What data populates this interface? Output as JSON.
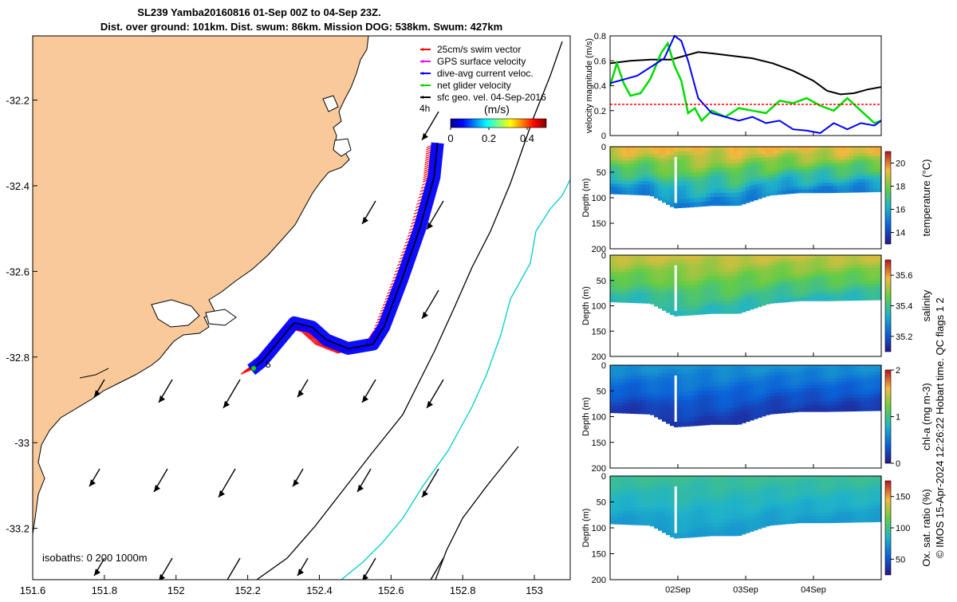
{
  "title": {
    "line1": "SL239 Yamba20160816 01-Sep 00Z to 04-Sep 23Z.",
    "line2": "Dist. over ground: 101km. Dist. swum: 86km. Mission DOG: 538km. Swum: 427km"
  },
  "side_note": "© IMOS 15-Apr-2024 12:26:22 Hobart time. QC flags 1  2",
  "colors": {
    "land": "#f9c99a",
    "swim_vector": "#ff0000",
    "gps_velocity": "#ff00ff",
    "dive_avg_current": "#0000ff",
    "net_glider_velocity": "#00dd00",
    "sfc_geo_velocity": "#000000",
    "isobath_200": "#000000",
    "isobath_1000": "#00cccc"
  },
  "chart_data": [
    {
      "id": "map",
      "type": "map",
      "xlim": [
        151.6,
        153.1
      ],
      "ylim": [
        -33.32,
        -32.05
      ],
      "xticks": [
        "151.6",
        "151.8",
        "152",
        "152.2",
        "152.4",
        "152.6",
        "152.8",
        "153"
      ],
      "yticks": [
        "-32.2",
        "-32.4",
        "-32.6",
        "-32.8",
        "-33",
        "-33.2"
      ],
      "legend": {
        "placement": "top-right",
        "items": [
          {
            "label": "25cm/s swim vector",
            "color": "#ff0000"
          },
          {
            "label": "GPS surface velocity",
            "color": "#ff00ff"
          },
          {
            "label": "dive-avg current veloc.",
            "color": "#0000ff"
          },
          {
            "label": "net glider velocity",
            "color": "#00dd00"
          },
          {
            "label": "sfc geo. vel. 04-Sep-2016",
            "color": "#000000"
          }
        ]
      },
      "colorbar": {
        "label": "(m/s)",
        "ticks": [
          "0",
          "0.2",
          "0.4"
        ],
        "range": [
          0,
          0.5
        ]
      },
      "labels": {
        "interval": "4h",
        "marker": "5",
        "isobaths": "isobaths: 0   200  1000m"
      },
      "glider_track": [
        [
          152.73,
          -32.3
        ],
        [
          152.72,
          -32.38
        ],
        [
          152.68,
          -32.5
        ],
        [
          152.63,
          -32.62
        ],
        [
          152.58,
          -32.73
        ],
        [
          152.55,
          -32.77
        ],
        [
          152.48,
          -32.78
        ],
        [
          152.42,
          -32.76
        ],
        [
          152.38,
          -32.73
        ],
        [
          152.33,
          -32.72
        ],
        [
          152.29,
          -32.76
        ],
        [
          152.24,
          -32.81
        ],
        [
          152.21,
          -32.83
        ]
      ]
    },
    {
      "id": "velocity",
      "type": "line",
      "ylabel": "velocity magnitude (m/s)",
      "xlim": [
        0,
        4
      ],
      "ylim": [
        0,
        0.8
      ],
      "yticks": [
        "0",
        "0.2",
        "0.4",
        "0.6",
        "0.8"
      ],
      "series": [
        {
          "color": "#000000",
          "x": [
            0,
            0.3,
            0.6,
            0.9,
            1.1,
            1.3,
            1.5,
            1.8,
            2.1,
            2.4,
            2.7,
            3.0,
            3.2,
            3.4,
            3.6,
            3.8,
            4.0
          ],
          "values": [
            0.58,
            0.6,
            0.61,
            0.61,
            0.64,
            0.67,
            0.66,
            0.64,
            0.62,
            0.58,
            0.52,
            0.44,
            0.36,
            0.33,
            0.34,
            0.37,
            0.39
          ]
        },
        {
          "color": "#00dd00",
          "x": [
            0,
            0.1,
            0.2,
            0.3,
            0.45,
            0.6,
            0.75,
            0.85,
            0.95,
            1.05,
            1.15,
            1.25,
            1.35,
            1.5,
            1.7,
            1.9,
            2.1,
            2.3,
            2.5,
            2.7,
            2.9,
            3.1,
            3.3,
            3.5,
            3.7,
            3.9,
            4.0
          ],
          "values": [
            0.4,
            0.58,
            0.42,
            0.32,
            0.34,
            0.46,
            0.66,
            0.74,
            0.56,
            0.44,
            0.18,
            0.22,
            0.12,
            0.2,
            0.15,
            0.22,
            0.2,
            0.18,
            0.28,
            0.26,
            0.3,
            0.24,
            0.2,
            0.3,
            0.2,
            0.1,
            0.12
          ]
        },
        {
          "color": "#0000ff",
          "x": [
            0,
            0.2,
            0.4,
            0.6,
            0.8,
            0.95,
            1.05,
            1.15,
            1.3,
            1.5,
            1.7,
            1.9,
            2.1,
            2.3,
            2.5,
            2.7,
            2.9,
            3.1,
            3.3,
            3.5,
            3.7,
            3.9,
            4.0
          ],
          "values": [
            0.42,
            0.45,
            0.48,
            0.55,
            0.62,
            0.8,
            0.76,
            0.6,
            0.3,
            0.18,
            0.15,
            0.12,
            0.15,
            0.1,
            0.12,
            0.05,
            0.04,
            0.02,
            0.1,
            0.05,
            0.1,
            0.08,
            0.12
          ]
        },
        {
          "color": "#ff0000",
          "style": "dashed",
          "x": [
            0,
            4
          ],
          "values": [
            0.25,
            0.25
          ]
        }
      ]
    },
    {
      "id": "temperature",
      "type": "heatmap",
      "ylabel": "Depth (m)",
      "colorbar_label": "temperature (°C)",
      "colorbar_ticks": [
        "14",
        "16",
        "18",
        "20"
      ],
      "color_range": [
        13,
        21
      ],
      "ylim": [
        200,
        0
      ],
      "yticks": [
        "0",
        "50",
        "100",
        "150",
        "200"
      ],
      "bottom_depth": [
        [
          0,
          92
        ],
        [
          0.6,
          95
        ],
        [
          0.95,
          120
        ],
        [
          1.2,
          118
        ],
        [
          1.5,
          115
        ],
        [
          1.9,
          115
        ],
        [
          2.35,
          95
        ],
        [
          2.8,
          90
        ],
        [
          3.2,
          90
        ],
        [
          4.0,
          88
        ]
      ],
      "surface_value": 19.5,
      "deep_value": 15.0
    },
    {
      "id": "salinity",
      "type": "heatmap",
      "ylabel": "Depth (m)",
      "colorbar_label": "salinity",
      "colorbar_ticks": [
        "35.2",
        "35.4",
        "35.6"
      ],
      "color_range": [
        35.1,
        35.7
      ],
      "ylim": [
        200,
        0
      ],
      "yticks": [
        "0",
        "50",
        "100",
        "150",
        "200"
      ],
      "bottom_depth": [
        [
          0,
          92
        ],
        [
          0.6,
          95
        ],
        [
          0.95,
          120
        ],
        [
          1.2,
          118
        ],
        [
          1.5,
          115
        ],
        [
          1.9,
          115
        ],
        [
          2.35,
          95
        ],
        [
          2.8,
          90
        ],
        [
          3.2,
          90
        ],
        [
          4.0,
          88
        ]
      ],
      "surface_value": 35.55,
      "deep_value": 35.35
    },
    {
      "id": "chla",
      "type": "heatmap",
      "ylabel": "Depth (m)",
      "colorbar_label": "chl-a (mg m-3)",
      "colorbar_ticks": [
        "0",
        "1",
        "2"
      ],
      "color_range": [
        0,
        2
      ],
      "ylim": [
        200,
        0
      ],
      "yticks": [
        "0",
        "50",
        "100",
        "150",
        "200"
      ],
      "bottom_depth": [
        [
          0,
          92
        ],
        [
          0.6,
          95
        ],
        [
          0.95,
          120
        ],
        [
          1.2,
          118
        ],
        [
          1.5,
          115
        ],
        [
          1.9,
          115
        ],
        [
          2.35,
          95
        ],
        [
          2.8,
          90
        ],
        [
          3.2,
          90
        ],
        [
          4.0,
          88
        ]
      ],
      "surface_value": 0.65,
      "deep_value": 0.15
    },
    {
      "id": "oxygen",
      "type": "heatmap",
      "ylabel": "Depth (m)",
      "colorbar_label": "Ox. sat. ratio (%)",
      "colorbar_ticks": [
        "50",
        "100",
        "150"
      ],
      "color_range": [
        25,
        175
      ],
      "ylim": [
        200,
        0
      ],
      "yticks": [
        "0",
        "50",
        "100",
        "150",
        "200"
      ],
      "bottom_depth": [
        [
          0,
          92
        ],
        [
          0.6,
          95
        ],
        [
          0.95,
          120
        ],
        [
          1.2,
          118
        ],
        [
          1.5,
          115
        ],
        [
          1.9,
          115
        ],
        [
          2.35,
          95
        ],
        [
          2.8,
          90
        ],
        [
          3.2,
          90
        ],
        [
          4.0,
          88
        ]
      ],
      "surface_value": 98,
      "deep_value": 75
    }
  ],
  "time_axis": {
    "xlim": [
      0,
      4
    ],
    "ticks": [
      {
        "x": 1,
        "label": "02Sep"
      },
      {
        "x": 2,
        "label": "03Sep"
      },
      {
        "x": 3,
        "label": "04Sep"
      }
    ]
  }
}
